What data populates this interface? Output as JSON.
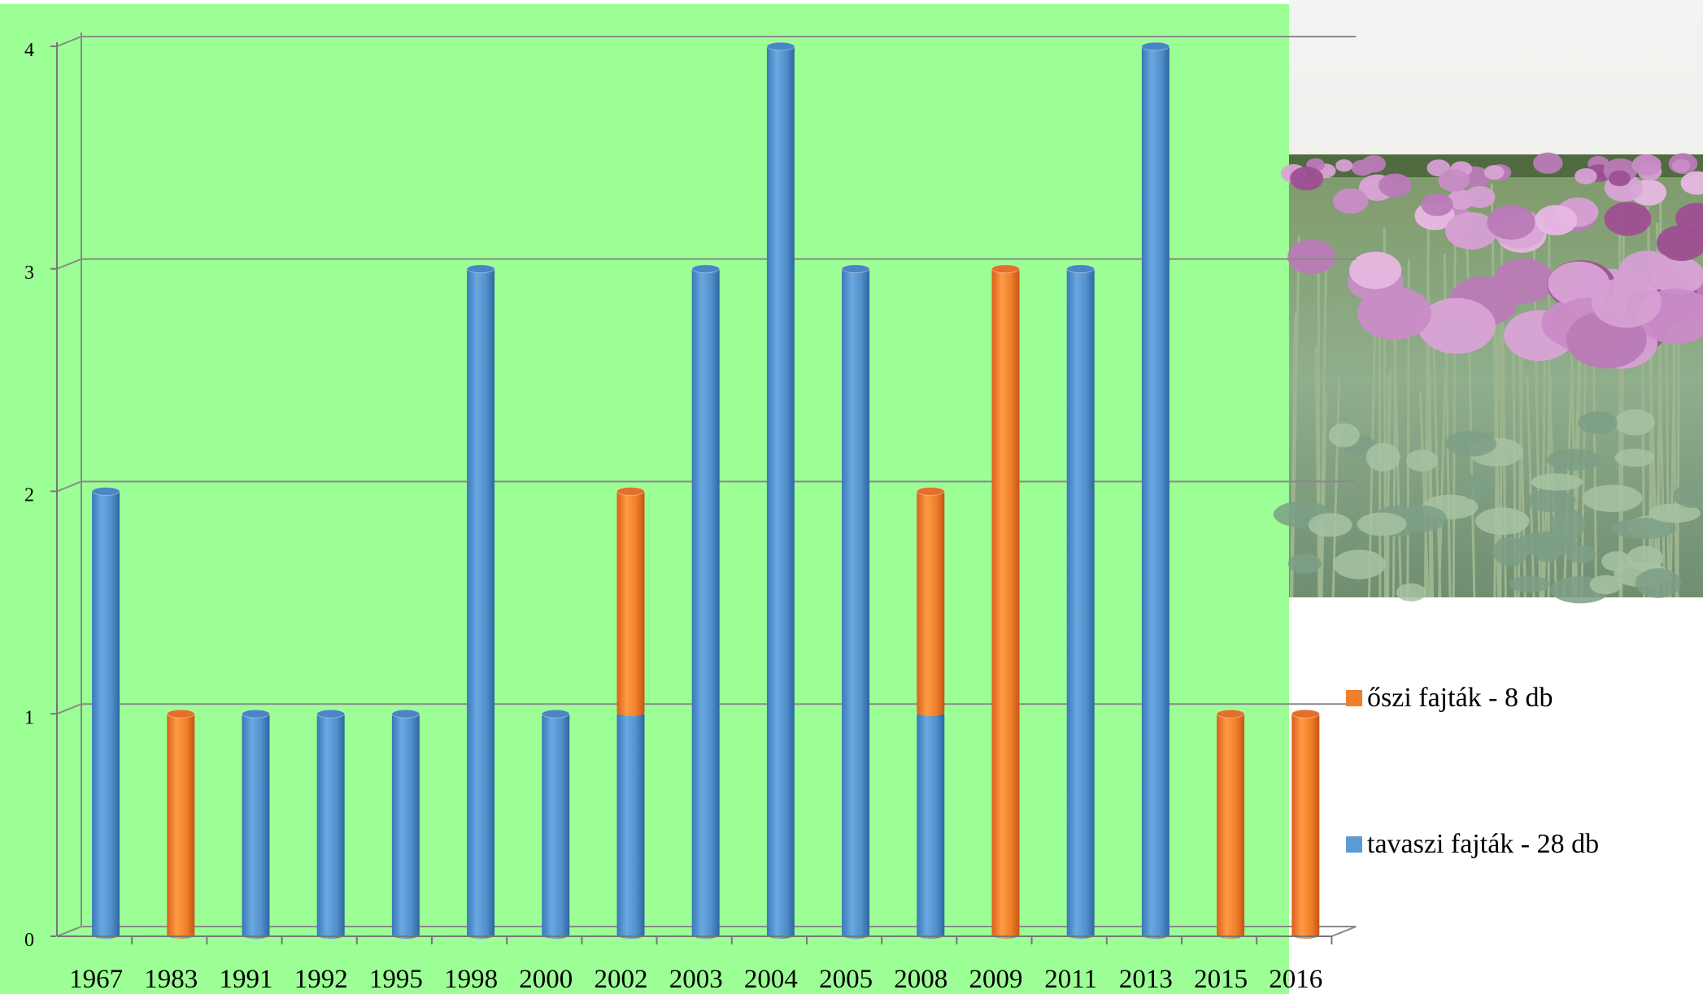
{
  "chart_data": {
    "type": "bar",
    "stacked": true,
    "categories": [
      "1967",
      "1983",
      "1991",
      "1992",
      "1995",
      "1998",
      "2000",
      "2002",
      "2003",
      "2004",
      "2005",
      "2008",
      "2009",
      "2011",
      "2013",
      "2015",
      "2016"
    ],
    "series": [
      {
        "name": "tavaszi fajták - 28 db",
        "color": "#5b9bd5",
        "values": [
          2,
          0,
          1,
          1,
          1,
          3,
          1,
          1,
          3,
          4,
          3,
          1,
          0,
          3,
          4,
          0,
          0
        ]
      },
      {
        "name": "őszi fajták - 8 db",
        "color": "#f07f2b",
        "values": [
          0,
          1,
          0,
          0,
          0,
          0,
          0,
          1,
          0,
          0,
          0,
          1,
          3,
          0,
          0,
          1,
          1
        ]
      }
    ],
    "yticks": [
      "0",
      "1",
      "2",
      "3",
      "4"
    ],
    "ylim": [
      0,
      4
    ],
    "grid": true,
    "background": "#9cff96",
    "legend_position": "right"
  },
  "legend": {
    "autumn_label": "őszi fajták - 8 db",
    "spring_label": "tavaszi fajták - 28 db"
  },
  "photo": {
    "icon": "poppy-field-photo"
  }
}
